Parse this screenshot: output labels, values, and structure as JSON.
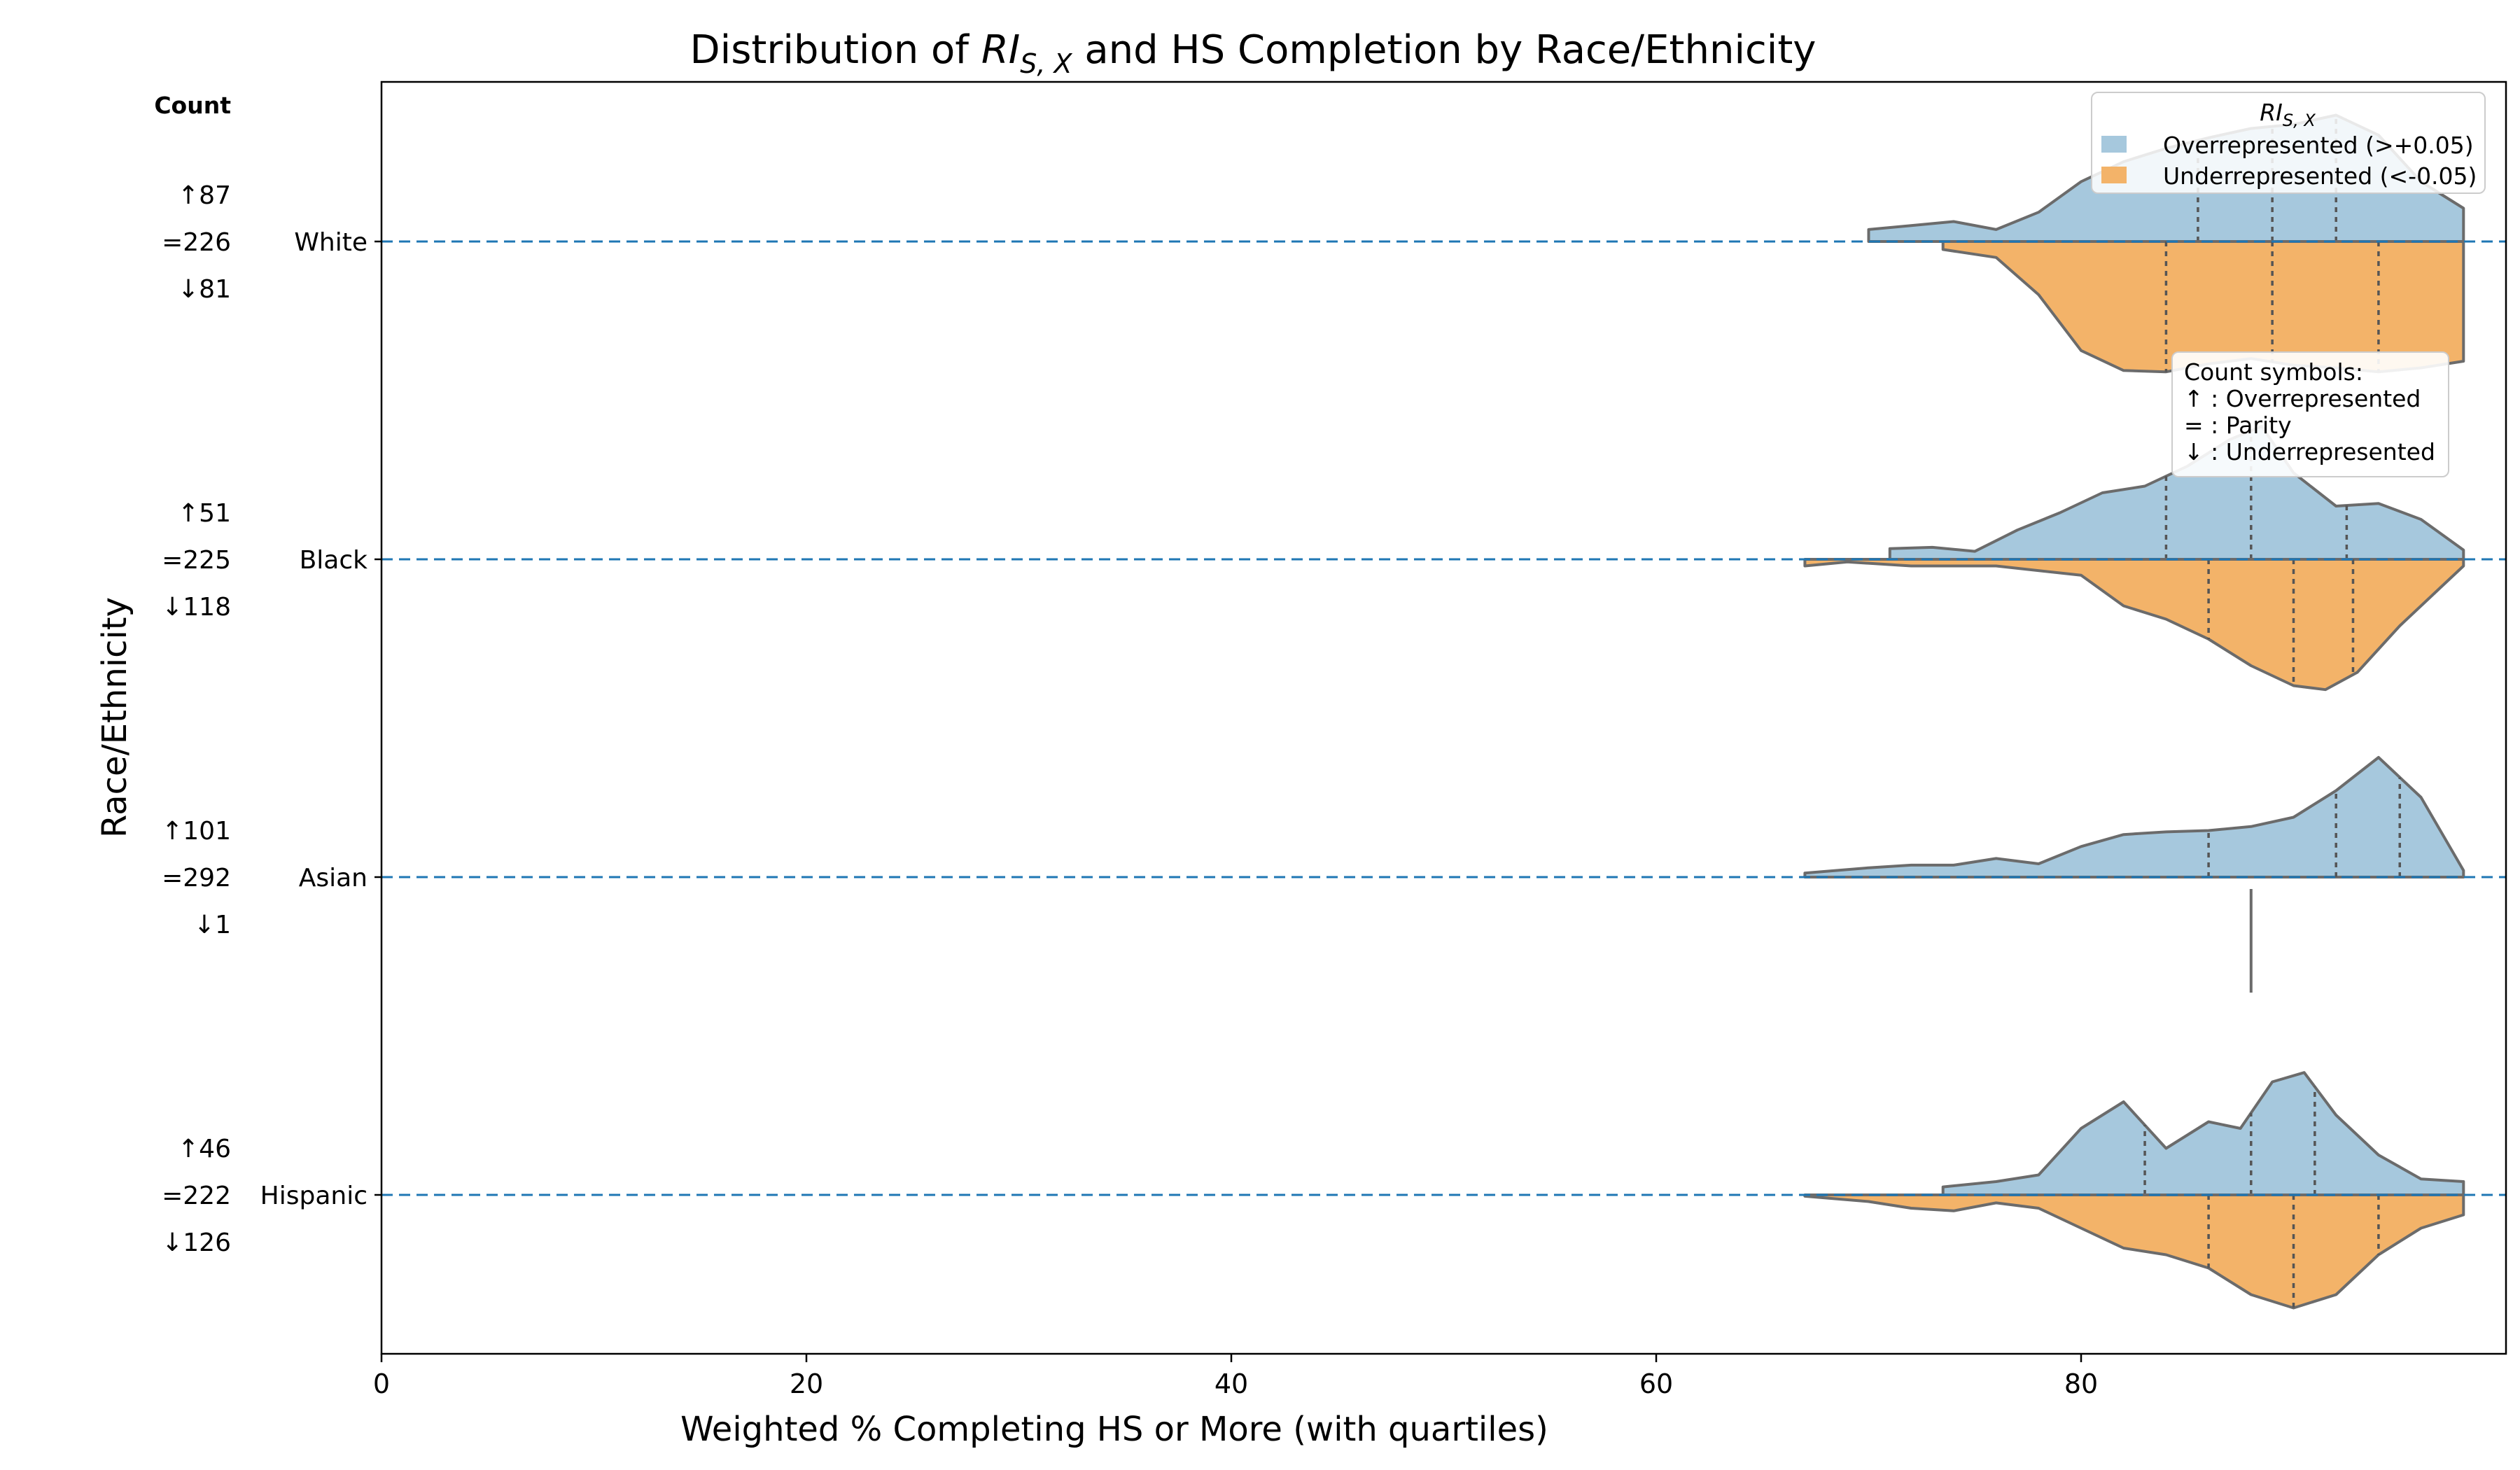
{
  "chart_data": {
    "type": "violin",
    "title": "Distribution of RI_S,X and HS Completion by Race/Ethnicity",
    "title_parts": {
      "before": "Distribution of ",
      "math_main": "RI",
      "math_sub": "S, X",
      "after": " and HS Completion by Race/Ethnicity"
    },
    "xlabel": "Weighted % Completing HS or More (with quartiles)",
    "ylabel": "Race/Ethnicity",
    "xlim": [
      0,
      100
    ],
    "x_ticks": [
      0,
      20,
      40,
      60,
      80
    ],
    "count_header": "Count",
    "legend": {
      "title_main": "RI",
      "title_sub": "S, X",
      "placement": "top-right",
      "entries": [
        {
          "key": "over",
          "label": "Overrepresented (>+0.05)",
          "color": "#a6c8dd"
        },
        {
          "key": "under",
          "label": "Underrepresented (<-0.05)",
          "color": "#f3b369"
        }
      ]
    },
    "annotation": {
      "title": "Count symbols:",
      "lines": [
        "↑ : Overrepresented",
        "= : Parity",
        "↓ : Underrepresented"
      ]
    },
    "colors": {
      "over": "#a6c8dd",
      "under": "#f3b369",
      "edge": "#6b6b6b",
      "dashed_line": "#1f77b4"
    },
    "categories": [
      {
        "name": "White",
        "counts": {
          "over": "↑87",
          "parity": "=226",
          "under": "↓81"
        },
        "over": {
          "profile": [
            [
              70,
              0.09
            ],
            [
              72,
              0.12
            ],
            [
              74,
              0.15
            ],
            [
              76,
              0.09
            ],
            [
              78,
              0.22
            ],
            [
              80,
              0.45
            ],
            [
              82,
              0.6
            ],
            [
              84,
              0.7
            ],
            [
              86,
              0.78
            ],
            [
              88,
              0.85
            ],
            [
              90,
              0.88
            ],
            [
              92,
              0.95
            ],
            [
              94,
              0.8
            ],
            [
              96,
              0.45
            ],
            [
              98,
              0.25
            ]
          ],
          "quartiles": [
            85.5,
            89,
            92
          ]
        },
        "under": {
          "profile": [
            [
              73.5,
              0.06
            ],
            [
              76,
              0.12
            ],
            [
              78,
              0.4
            ],
            [
              80,
              0.82
            ],
            [
              82,
              0.97
            ],
            [
              84,
              0.98
            ],
            [
              86,
              0.92
            ],
            [
              88,
              0.88
            ],
            [
              90,
              0.93
            ],
            [
              92,
              0.95
            ],
            [
              94,
              0.98
            ],
            [
              96,
              0.95
            ],
            [
              98,
              0.9
            ]
          ],
          "quartiles": [
            84,
            89,
            94
          ]
        }
      },
      {
        "name": "Black",
        "counts": {
          "over": "↑51",
          "parity": "=225",
          "under": "↓118"
        },
        "over": {
          "profile": [
            [
              71,
              0.08
            ],
            [
              73,
              0.09
            ],
            [
              75,
              0.06
            ],
            [
              77,
              0.22
            ],
            [
              79,
              0.35
            ],
            [
              81,
              0.5
            ],
            [
              83,
              0.55
            ],
            [
              85,
              0.7
            ],
            [
              87,
              0.9
            ],
            [
              88.5,
              1.0
            ],
            [
              90,
              0.65
            ],
            [
              92,
              0.4
            ],
            [
              94,
              0.42
            ],
            [
              96,
              0.3
            ],
            [
              98,
              0.07
            ]
          ],
          "quartiles": [
            84,
            88,
            92.5
          ]
        },
        "under": {
          "profile": [
            [
              67,
              0.05
            ],
            [
              69,
              0.02
            ],
            [
              72,
              0.05
            ],
            [
              76,
              0.05
            ],
            [
              80,
              0.12
            ],
            [
              82,
              0.35
            ],
            [
              84,
              0.45
            ],
            [
              86,
              0.6
            ],
            [
              88,
              0.8
            ],
            [
              90,
              0.95
            ],
            [
              91.5,
              0.98
            ],
            [
              93,
              0.85
            ],
            [
              95,
              0.5
            ],
            [
              97,
              0.2
            ],
            [
              98,
              0.05
            ]
          ],
          "quartiles": [
            86,
            90,
            92.8
          ]
        }
      },
      {
        "name": "Asian",
        "counts": {
          "over": "↑101",
          "parity": "=292",
          "under": "↓1"
        },
        "over": {
          "profile": [
            [
              67,
              0.03
            ],
            [
              70,
              0.07
            ],
            [
              72,
              0.09
            ],
            [
              74,
              0.09
            ],
            [
              76,
              0.14
            ],
            [
              78,
              0.1
            ],
            [
              80,
              0.23
            ],
            [
              82,
              0.32
            ],
            [
              84,
              0.34
            ],
            [
              86,
              0.35
            ],
            [
              88,
              0.38
            ],
            [
              90,
              0.45
            ],
            [
              92,
              0.65
            ],
            [
              94,
              0.9
            ],
            [
              96,
              0.6
            ],
            [
              98,
              0.05
            ]
          ],
          "quartiles": [
            86,
            92,
            95
          ]
        },
        "under": {
          "point": 88
        }
      },
      {
        "name": "Hispanic",
        "counts": {
          "over": "↑46",
          "parity": "=222",
          "under": "↓126"
        },
        "over": {
          "profile": [
            [
              73.5,
              0.06
            ],
            [
              76,
              0.1
            ],
            [
              78,
              0.15
            ],
            [
              80,
              0.5
            ],
            [
              82,
              0.7
            ],
            [
              84,
              0.35
            ],
            [
              86,
              0.55
            ],
            [
              87.5,
              0.5
            ],
            [
              89,
              0.85
            ],
            [
              90.5,
              0.92
            ],
            [
              92,
              0.6
            ],
            [
              94,
              0.3
            ],
            [
              96,
              0.12
            ],
            [
              98,
              0.1
            ]
          ],
          "quartiles": [
            83,
            88,
            91
          ]
        },
        "under": {
          "profile": [
            [
              67,
              0.01
            ],
            [
              70,
              0.05
            ],
            [
              72,
              0.1
            ],
            [
              74,
              0.12
            ],
            [
              76,
              0.06
            ],
            [
              78,
              0.1
            ],
            [
              80,
              0.25
            ],
            [
              82,
              0.4
            ],
            [
              84,
              0.45
            ],
            [
              86,
              0.55
            ],
            [
              88,
              0.75
            ],
            [
              90,
              0.85
            ],
            [
              92,
              0.75
            ],
            [
              94,
              0.45
            ],
            [
              96,
              0.25
            ],
            [
              98,
              0.15
            ]
          ],
          "quartiles": [
            86,
            90,
            94
          ]
        }
      }
    ]
  }
}
